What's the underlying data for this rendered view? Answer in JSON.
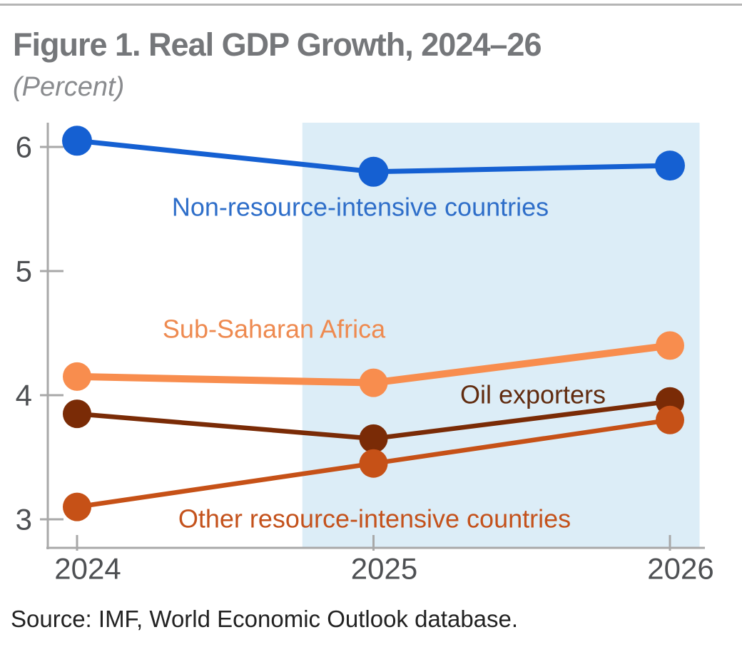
{
  "page": {
    "background_color": "#ffffff",
    "top_rule_color": "#b5b5b5"
  },
  "header": {
    "title": "Figure 1. Real GDP Growth, 2024–26",
    "subtitle": "(Percent)",
    "title_color": "#75777a",
    "subtitle_color": "#898b8e"
  },
  "source_note": {
    "text": "Source: IMF, World Economic Outlook database.",
    "color": "#222222"
  },
  "chart_data": {
    "type": "line",
    "title": "Figure 1. Real GDP Growth, 2024–26",
    "units_label": "Percent",
    "x_categories": [
      "2024",
      "2025",
      "2026"
    ],
    "y_axis": {
      "ticks": [
        6,
        5,
        4,
        3
      ],
      "tick_labels": [
        "6",
        "5",
        "4",
        "3"
      ],
      "range_shown": [
        2.73,
        6.15
      ],
      "grid": false
    },
    "axis_color": "#a8a8a8",
    "tick_label_color": "#4e5053",
    "legend_position": "inline-labels",
    "forecast_shading": {
      "color": "#dcedf7",
      "x_start_category_fraction": 0.76,
      "x_end_category_fraction": 2.1
    },
    "series": [
      {
        "name": "Non-resource-intensive countries",
        "values": [
          6.05,
          5.8,
          5.85
        ],
        "color": "#1560d2",
        "label_color": "#2e6ec9"
      },
      {
        "name": "Sub-Saharan Africa",
        "values": [
          4.15,
          4.1,
          4.4
        ],
        "color": "#f88d4e",
        "label_color": "#ee8a50"
      },
      {
        "name": "Oil exporters",
        "values": [
          3.85,
          3.65,
          3.95
        ],
        "color": "#7a2b06",
        "label_color": "#612c10"
      },
      {
        "name": "Other resource-intensive countries",
        "values": [
          3.1,
          3.45,
          3.8
        ],
        "color": "#c65117",
        "label_color": "#c4521c"
      }
    ]
  }
}
